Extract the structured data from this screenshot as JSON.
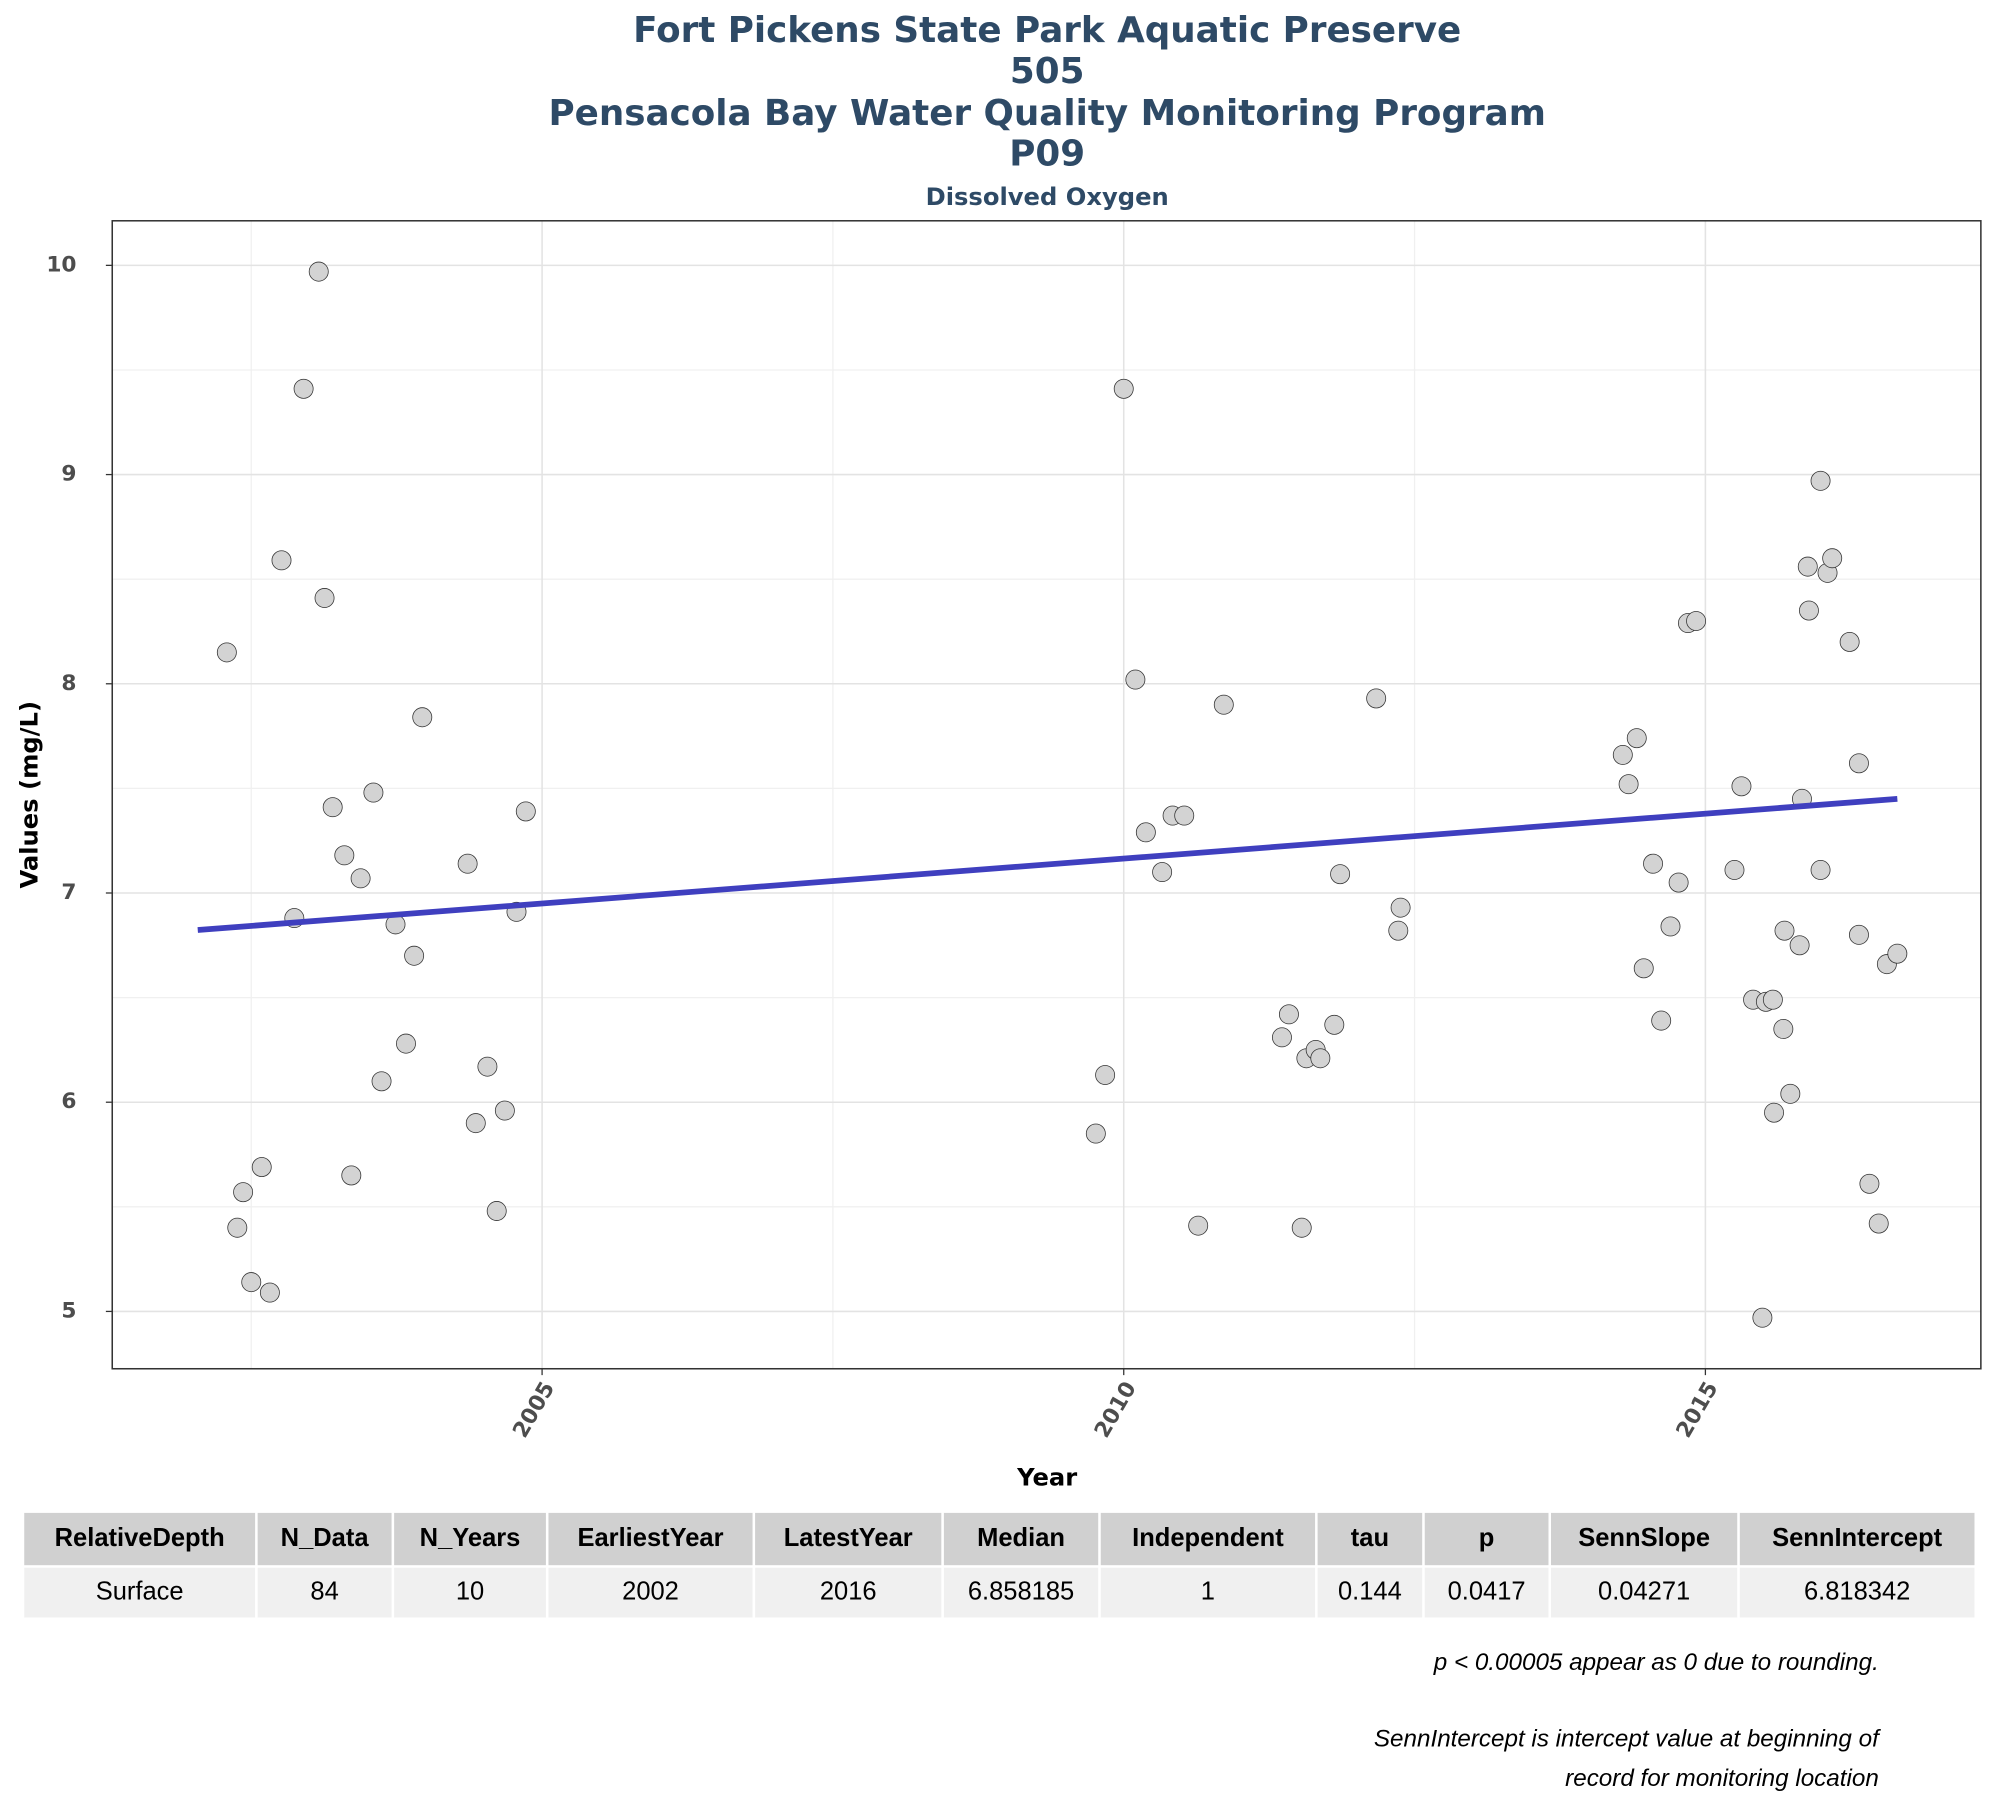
{
  "chart_data": {
    "type": "scatter",
    "title_lines": [
      "Fort Pickens State Park Aquatic Preserve",
      "505",
      "Pensacola Bay Water Quality Monitoring Program",
      "P09"
    ],
    "subtitle": "Dissolved Oxygen",
    "x_label": "Year",
    "y_label": "Values (mg/L)",
    "xlim": [
      2001.305,
      2017.368
    ],
    "ylim": [
      4.726,
      10.213
    ],
    "xticks": [
      2005,
      2010,
      2015
    ],
    "yticks": [
      5,
      6,
      7,
      8,
      9,
      10
    ],
    "x_minor_ticks": [
      2002.5,
      2007.5,
      2012.5,
      2017.5
    ],
    "y_minor_ticks": [
      5.5,
      6.5,
      7.5,
      8.5,
      9.5
    ],
    "grid": true,
    "series": [
      {
        "color": "#d3d3d3",
        "x": [
          2002.29,
          2002.38,
          2002.43,
          2002.5,
          2002.59,
          2002.66,
          2002.76,
          2002.87,
          2002.95,
          2003.08,
          2003.13,
          2003.2,
          2003.3,
          2003.36,
          2003.44,
          2003.55,
          2003.62,
          2003.74,
          2003.83,
          2003.9,
          2003.97,
          2004.36,
          2004.43,
          2004.53,
          2004.61,
          2004.68,
          2004.78,
          2004.86,
          2009.76,
          2009.84,
          2010.0,
          2010.1,
          2010.19,
          2010.33,
          2010.42,
          2010.52,
          2010.64,
          2010.86,
          2011.36,
          2011.42,
          2011.53,
          2011.57,
          2011.65,
          2011.69,
          2011.81,
          2011.86,
          2012.17,
          2012.36,
          2012.38,
          2014.29,
          2014.34,
          2014.41,
          2014.47,
          2014.55,
          2014.62,
          2014.7,
          2014.77,
          2014.85,
          2014.92,
          2015.25,
          2015.31,
          2015.41,
          2015.49,
          2015.52,
          2015.58,
          2015.59,
          2015.67,
          2015.68,
          2015.73,
          2015.81,
          2015.83,
          2015.88,
          2015.89,
          2015.99,
          2015.99,
          2016.05,
          2016.09,
          2016.24,
          2016.32,
          2016.32,
          2016.41,
          2016.49,
          2016.56,
          2016.65
        ],
        "values": [
          8.15,
          5.4,
          5.57,
          5.14,
          5.69,
          5.09,
          8.59,
          6.88,
          9.41,
          9.97,
          8.41,
          7.41,
          7.18,
          5.65,
          7.07,
          7.48,
          6.1,
          6.85,
          6.28,
          6.7,
          7.84,
          7.14,
          5.9,
          6.17,
          5.48,
          5.96,
          6.91,
          7.39,
          5.85,
          6.13,
          9.41,
          8.02,
          7.29,
          7.1,
          7.37,
          7.37,
          5.41,
          7.9,
          6.31,
          6.42,
          5.4,
          6.21,
          6.25,
          6.21,
          6.37,
          7.09,
          7.93,
          6.82,
          6.93,
          7.66,
          7.52,
          7.74,
          6.64,
          7.14,
          6.39,
          6.84,
          7.05,
          8.29,
          8.3,
          7.11,
          7.51,
          6.49,
          4.97,
          6.48,
          6.49,
          5.95,
          6.35,
          6.82,
          6.04,
          6.75,
          7.45,
          8.56,
          8.35,
          8.97,
          7.11,
          8.53,
          8.6,
          8.2,
          7.62,
          6.8,
          5.61,
          5.42,
          6.66,
          6.71
        ]
      }
    ],
    "trend": {
      "color": "#3f3fbf",
      "x": [
        2002.04,
        2016.65
      ],
      "values": [
        6.823,
        7.45
      ]
    }
  },
  "table": {
    "header": [
      "RelativeDepth",
      "N_Data",
      "N_Years",
      "EarliestYear",
      "LatestYear",
      "Median",
      "Independent",
      "tau",
      "p",
      "SennSlope",
      "SennIntercept"
    ],
    "rows": [
      [
        "Surface",
        "84",
        "10",
        "2002",
        "2016",
        "6.858185",
        "1",
        "0.144",
        "0.0417",
        "0.04271",
        "6.818342"
      ]
    ]
  },
  "notes": [
    "p < 0.00005 appear as 0 due to rounding.",
    "SennIntercept is intercept value at beginning of",
    "record for monitoring location"
  ]
}
